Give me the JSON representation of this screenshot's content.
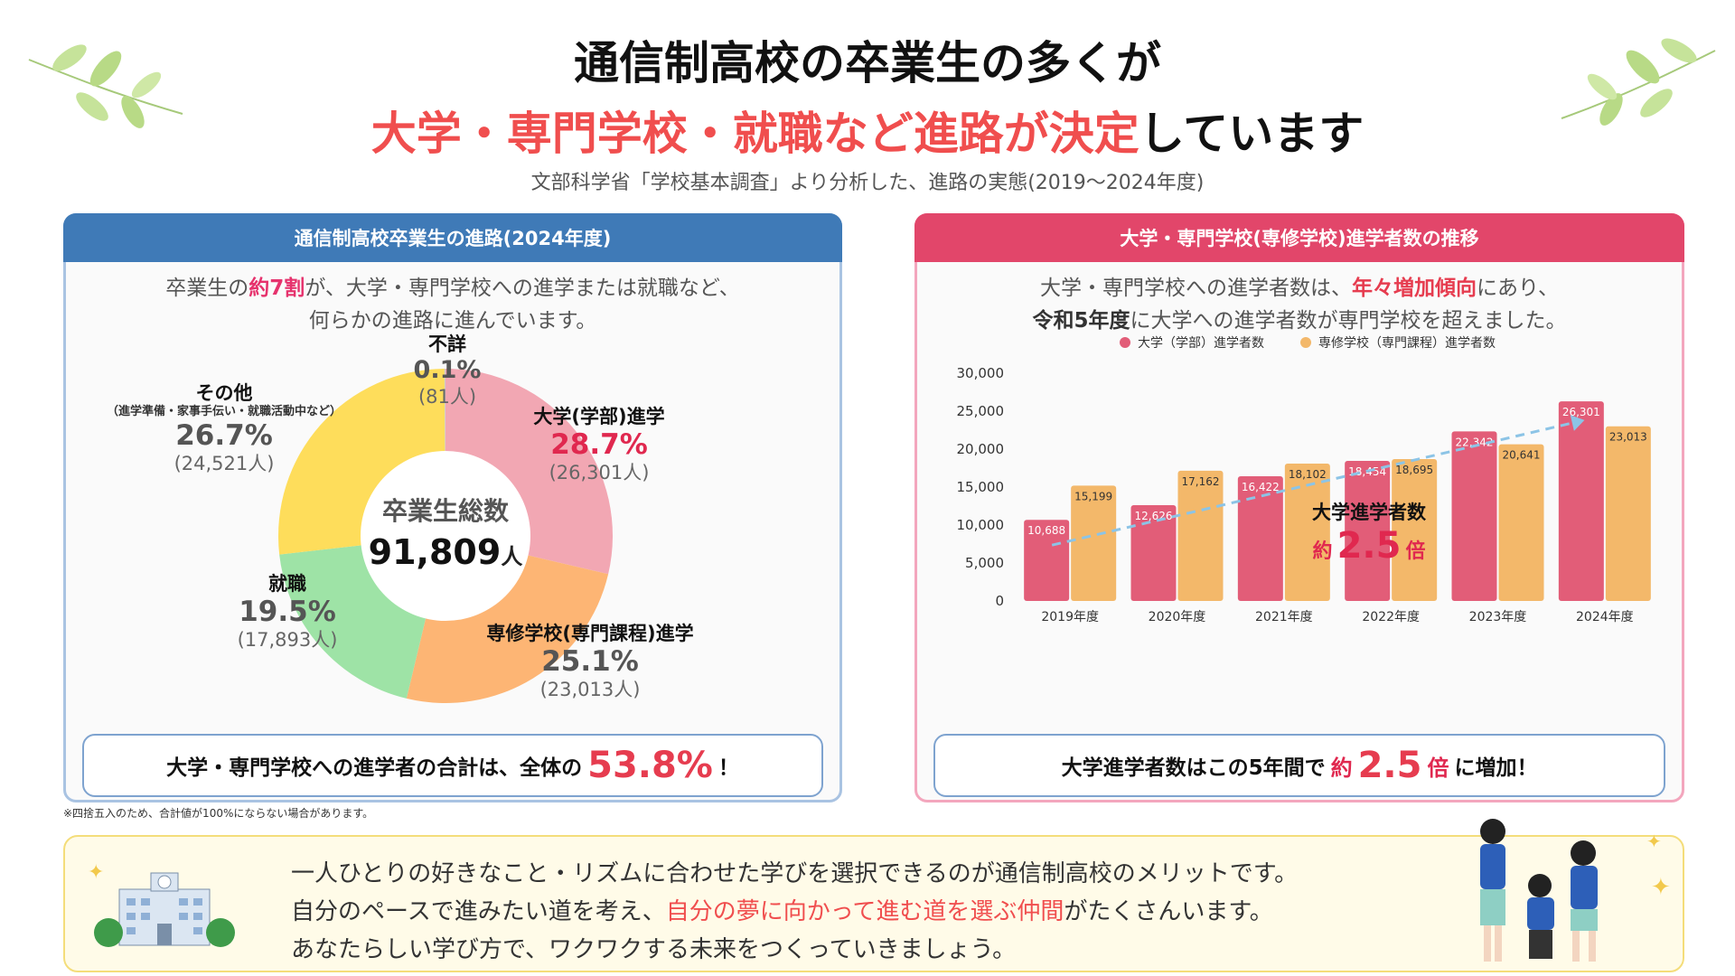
{
  "header": {
    "title_line1": "通信制高校の卒業生の多くが",
    "title_line2_red": "大学・専門学校・就職など進路が決定",
    "title_line2_rest": "しています",
    "subtitle": "文部科学省「学校基本調査」より分析した、進路の実態(2019〜2024年度)"
  },
  "left_panel": {
    "header": "通信制高校卒業生の進路(2024年度)",
    "desc_line1_a": "卒業生の",
    "desc_line1_hl": "約7割",
    "desc_line1_b": "が、大学・専門学校への進学または就職など、",
    "desc_line2": "何らかの進路に進んでいます。",
    "center_label": "卒業生総数",
    "center_value": "91,809",
    "center_unit": "人",
    "callout_text": "大学・専門学校への進学者の合計は、全体の",
    "callout_value": "53.8%",
    "callout_suffix": "！"
  },
  "chart_data": [
    {
      "type": "pie",
      "variant": "donut",
      "total_label": "卒業生総数",
      "total": 91809,
      "slices": [
        {
          "name": "大学(学部)進学",
          "percent": 28.7,
          "percent_label": "28.7%",
          "count": 26301,
          "count_label": "(26,301人)",
          "color": "#f2a7b3"
        },
        {
          "name": "専修学校(専門課程)進学",
          "percent": 25.1,
          "percent_label": "25.1%",
          "count": 23013,
          "count_label": "(23,013人)",
          "color": "#fdb574"
        },
        {
          "name": "就職",
          "percent": 19.5,
          "percent_label": "19.5%",
          "count": 17893,
          "count_label": "(17,893人)",
          "color": "#9ee3a6"
        },
        {
          "name": "その他",
          "note": "（進学準備・家事手伝い・就職活動中など）",
          "percent": 26.7,
          "percent_label": "26.7%",
          "count": 24521,
          "count_label": "(24,521人)",
          "color": "#fedd5b"
        },
        {
          "name": "不詳",
          "percent": 0.1,
          "percent_label": "0.1%",
          "count": 81,
          "count_label": "(81人)",
          "color": "#cccccc"
        }
      ]
    },
    {
      "type": "bar",
      "title": "大学・専門学校(専修学校)進学者数の推移",
      "categories": [
        "2019年度",
        "2020年度",
        "2021年度",
        "2022年度",
        "2023年度",
        "2024年度"
      ],
      "series": [
        {
          "name": "大学（学部）進学者数",
          "color": "#e25d78",
          "values": [
            10688,
            12626,
            16422,
            18454,
            22342,
            26301
          ],
          "labels": [
            "10,688",
            "12,626",
            "16,422",
            "18,454",
            "22,342",
            "26,301"
          ]
        },
        {
          "name": "専修学校（専門課程）進学者数",
          "color": "#f3b86a",
          "values": [
            15199,
            17162,
            18102,
            18695,
            20641,
            23013
          ],
          "labels": [
            "15,199",
            "17,162",
            "18,102",
            "18,695",
            "20,641",
            "23,013"
          ]
        }
      ],
      "ylim": [
        0,
        30000
      ],
      "yticks": [
        "0",
        "5,000",
        "10,000",
        "15,000",
        "20,000",
        "25,000",
        "30,000"
      ],
      "legend": "top-center",
      "annotation": {
        "line1": "大学進学者数",
        "prefix": "約",
        "value": "2.5",
        "suffix": "倍"
      }
    }
  ],
  "right_panel": {
    "header": "大学・専門学校(専修学校)進学者数の推移",
    "desc_line1_a": "大学・専門学校への進学者数は、",
    "desc_line1_hl": "年々増加傾向",
    "desc_line1_b": "にあり、",
    "desc_line2_bold": "令和5年度",
    "desc_line2_rest": "に大学への進学者数が専門学校を超えました。",
    "callout_text": "大学進学者数はこの5年間で",
    "callout_prefix": "約",
    "callout_value": "2.5",
    "callout_unit": "倍",
    "callout_suffix": "に増加！"
  },
  "note": "※四捨五入のため、合計値が100%にならない場合があります。",
  "bottom": {
    "line1": "一人ひとりの好きなこと・リズムに合わせた学びを選択できるのが通信制高校のメリットです。",
    "line2_a": "自分のペースで進みたい道を考え、",
    "line2_red": "自分の夢に向かって進む道を選ぶ仲間",
    "line2_b": "がたくさんいます。",
    "line3": "あなたらしい学び方で、ワクワクする未来をつくっていきましょう。"
  }
}
